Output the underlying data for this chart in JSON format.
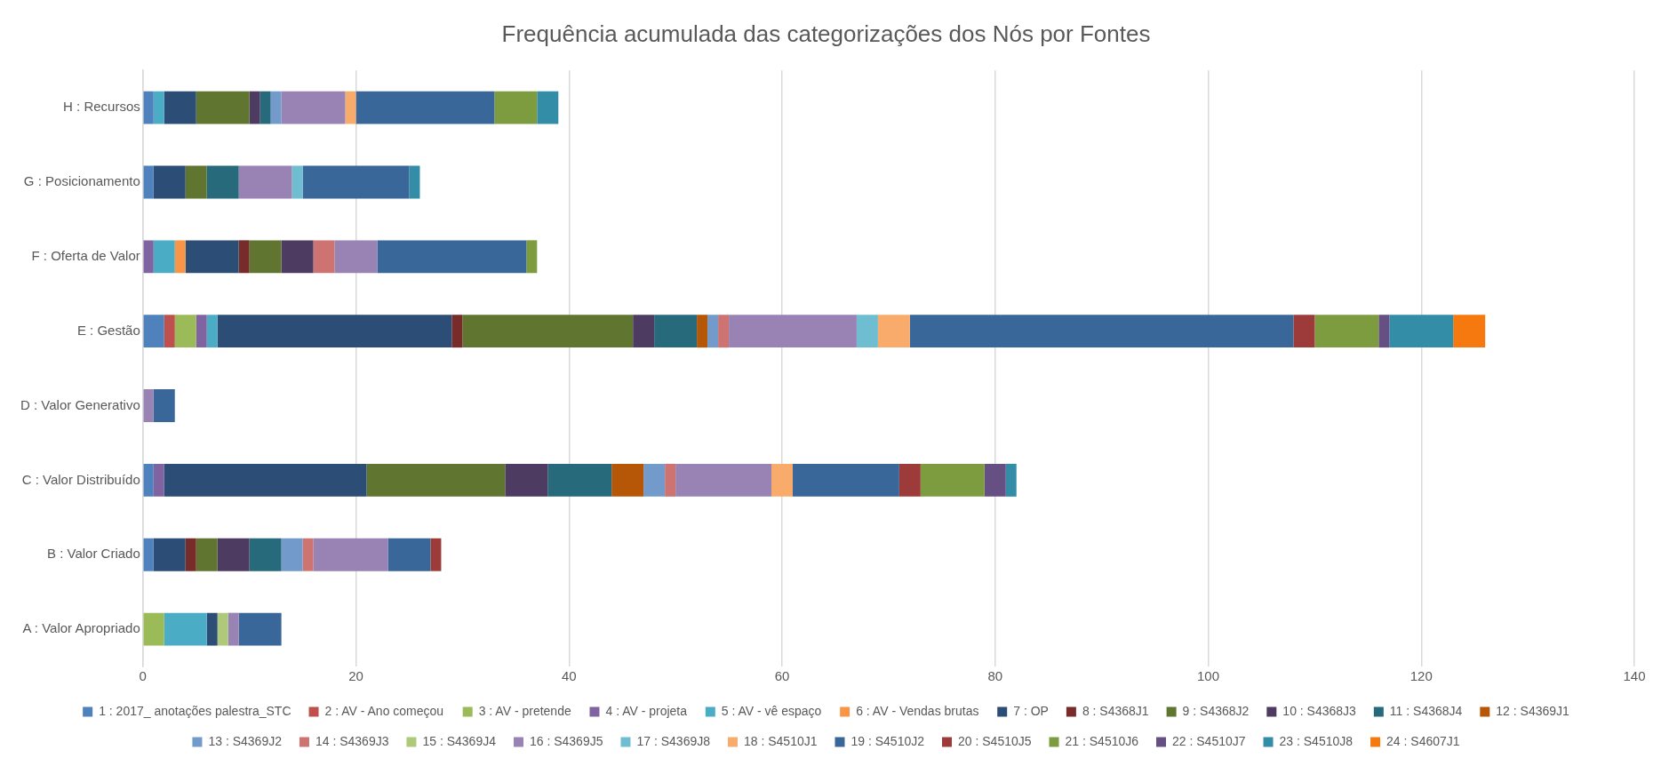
{
  "chart_data": {
    "type": "bar",
    "orientation": "horizontal",
    "stacked": true,
    "title": "Frequência acumulada das categorizações dos Nós por Fontes",
    "categories": [
      "H : Recursos",
      "G : Posicionamento",
      "F : Oferta de Valor",
      "E : Gestão",
      "D : Valor Generativo",
      "C : Valor Distribuído",
      "B : Valor Criado",
      "A : Valor Apropriado"
    ],
    "xlim": [
      0,
      140
    ],
    "xticks": [
      0,
      20,
      40,
      60,
      80,
      100,
      120,
      140
    ],
    "grid": "x",
    "legend": "bottom",
    "series": [
      {
        "name": "1 : 2017_ anotações palestra_STC",
        "color": "#4f81bd",
        "values": [
          1,
          1,
          0,
          2,
          0,
          1,
          1,
          0
        ]
      },
      {
        "name": "2 : AV - Ano começou",
        "color": "#c0504d",
        "values": [
          0,
          0,
          0,
          1,
          0,
          0,
          0,
          0
        ]
      },
      {
        "name": "3 : AV - pretende",
        "color": "#9bbb59",
        "values": [
          0,
          0,
          0,
          2,
          0,
          0,
          0,
          2
        ]
      },
      {
        "name": "4 : AV - projeta",
        "color": "#8064a2",
        "values": [
          0,
          0,
          1,
          1,
          0,
          1,
          0,
          0
        ]
      },
      {
        "name": "5 : AV - vê espaço",
        "color": "#4bacc6",
        "values": [
          1,
          0,
          2,
          1,
          0,
          0,
          0,
          4
        ]
      },
      {
        "name": "6 : AV - Vendas brutas",
        "color": "#f79646",
        "values": [
          0,
          0,
          1,
          0,
          0,
          0,
          0,
          0
        ]
      },
      {
        "name": "7 : OP",
        "color": "#2c4d75",
        "values": [
          3,
          3,
          5,
          22,
          0,
          19,
          3,
          1
        ]
      },
      {
        "name": "8 : S4368J1",
        "color": "#772c2a",
        "values": [
          0,
          0,
          1,
          1,
          0,
          0,
          1,
          0
        ]
      },
      {
        "name": "9 : S4368J2",
        "color": "#5f7530",
        "values": [
          5,
          2,
          3,
          16,
          0,
          13,
          2,
          0
        ]
      },
      {
        "name": "10 : S4368J3",
        "color": "#4d3b62",
        "values": [
          1,
          0,
          3,
          2,
          0,
          4,
          3,
          0
        ]
      },
      {
        "name": "11 : S4368J4",
        "color": "#276a7c",
        "values": [
          1,
          3,
          0,
          4,
          0,
          6,
          3,
          0
        ]
      },
      {
        "name": "12 : S4369J1",
        "color": "#b65708",
        "values": [
          0,
          0,
          0,
          1,
          0,
          3,
          0,
          0
        ]
      },
      {
        "name": "13 : S4369J2",
        "color": "#729aca",
        "values": [
          1,
          0,
          0,
          1,
          0,
          2,
          2,
          0
        ]
      },
      {
        "name": "14 : S4369J3",
        "color": "#cd7371",
        "values": [
          0,
          0,
          2,
          1,
          0,
          1,
          1,
          0
        ]
      },
      {
        "name": "15 : S4369J4",
        "color": "#afc97a",
        "values": [
          0,
          0,
          0,
          0,
          0,
          0,
          0,
          1
        ]
      },
      {
        "name": "16 : S4369J5",
        "color": "#9983b5",
        "values": [
          6,
          5,
          4,
          12,
          1,
          9,
          7,
          1
        ]
      },
      {
        "name": "17 : S4369J8",
        "color": "#6fbdd1",
        "values": [
          0,
          1,
          0,
          2,
          0,
          0,
          0,
          0
        ]
      },
      {
        "name": "18 : S4510J1",
        "color": "#f9ab6b",
        "values": [
          1,
          0,
          0,
          3,
          0,
          2,
          0,
          0
        ]
      },
      {
        "name": "19 : S4510J2",
        "color": "#3a6799",
        "values": [
          13,
          10,
          14,
          36,
          2,
          10,
          4,
          4
        ]
      },
      {
        "name": "20 : S4510J5",
        "color": "#9c3b39",
        "values": [
          0,
          0,
          0,
          2,
          0,
          2,
          1,
          0
        ]
      },
      {
        "name": "21 : S4510J6",
        "color": "#7d9c40",
        "values": [
          4,
          0,
          1,
          6,
          0,
          6,
          0,
          0
        ]
      },
      {
        "name": "22 : S4510J7",
        "color": "#664f83",
        "values": [
          0,
          0,
          0,
          1,
          0,
          2,
          0,
          0
        ]
      },
      {
        "name": "23 : S4510J8",
        "color": "#338da6",
        "values": [
          2,
          1,
          0,
          6,
          0,
          1,
          0,
          0
        ]
      },
      {
        "name": "24 : S4607J1",
        "color": "#f5790f",
        "values": [
          0,
          0,
          0,
          3,
          0,
          0,
          0,
          0
        ]
      }
    ]
  }
}
